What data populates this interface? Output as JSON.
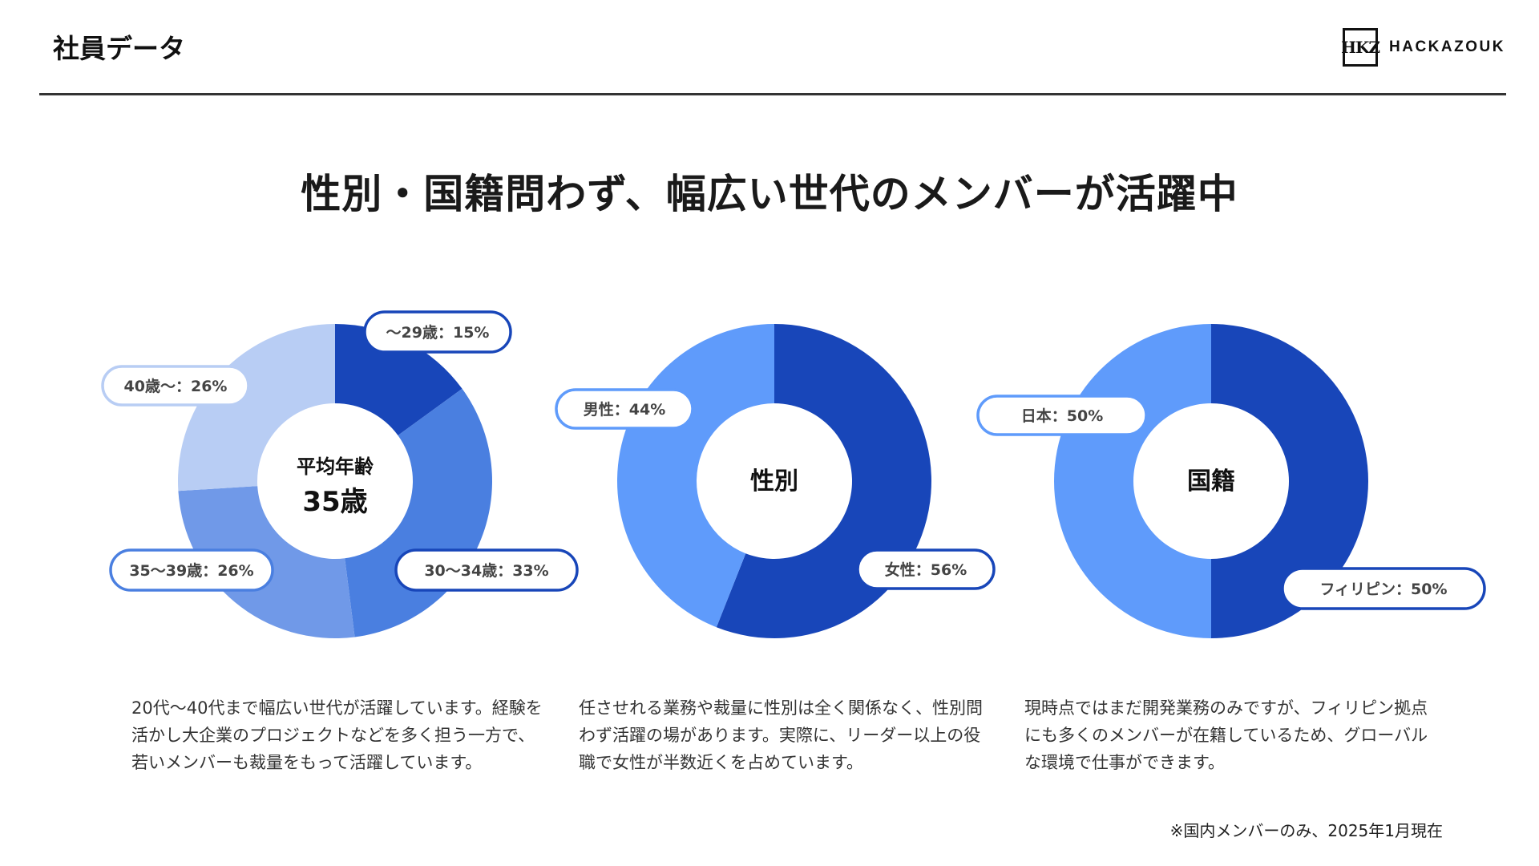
{
  "header": {
    "title": "社員データ",
    "logo_mark": "HKZ",
    "logo_text": "HACKAZOUK"
  },
  "headline": "性別・国籍問わず、幅広い世代のメンバーが活躍中",
  "colors": {
    "dark_blue": "#1846b9",
    "mid_blue": "#4a7fe0",
    "soft_blue": "#7099e8",
    "light_blue": "#b8cdf4",
    "bright_blue": "#5f9bfb",
    "label_border_dark": "#1846b9",
    "label_border_light": "#b8cdf4"
  },
  "chart_data": [
    {
      "type": "pie",
      "center_label": "平均年齢",
      "center_value": "35歳",
      "slices": [
        {
          "label": "〜29歳",
          "display": "〜29歳：15%",
          "value": 15
        },
        {
          "label": "30〜34歳",
          "display": "30〜34歳：33%",
          "value": 33
        },
        {
          "label": "35〜39歳",
          "display": "35〜39歳：26%",
          "value": 26
        },
        {
          "label": "40歳〜",
          "display": "40歳〜：26%",
          "value": 26
        }
      ]
    },
    {
      "type": "pie",
      "center_label": "性別",
      "slices": [
        {
          "label": "女性",
          "display": "女性：56%",
          "value": 56
        },
        {
          "label": "男性",
          "display": "男性：44%",
          "value": 44
        }
      ]
    },
    {
      "type": "pie",
      "center_label": "国籍",
      "slices": [
        {
          "label": "フィリピン",
          "display": "フィリピン：50%",
          "value": 50
        },
        {
          "label": "日本",
          "display": "日本：50%",
          "value": 50
        }
      ]
    }
  ],
  "descriptions": [
    "20代〜40代まで幅広い世代が活躍しています。経験を活かし大企業のプロジェクトなどを多く担う一方で、若いメンバーも裁量をもって活躍しています。",
    "任させれる業務や裁量に性別は全く関係なく、性別問わず活躍の場があります。実際に、リーダー以上の役職で女性が半数近くを占めています。",
    "現時点ではまだ開発業務のみですが、フィリピン拠点にも多くのメンバーが在籍しているため、グローバルな環境で仕事ができます。"
  ],
  "footnote": "※国内メンバーのみ、2025年1月現在"
}
